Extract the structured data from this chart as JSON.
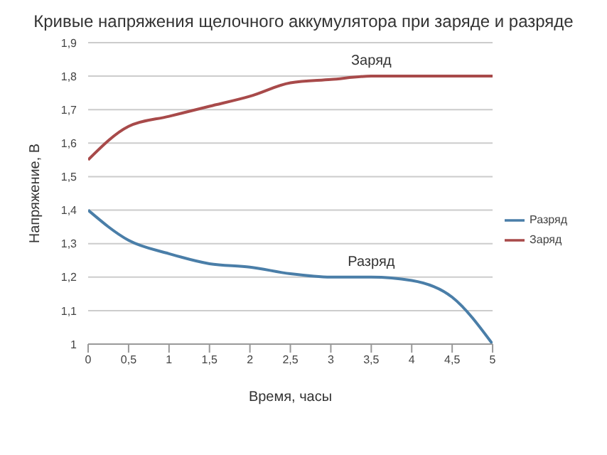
{
  "chart_data": {
    "type": "line",
    "title": "Кривые напряжения щелочного аккумулятора при заряде и разряде",
    "xlabel": "Время, часы",
    "ylabel": "Напряжение, В",
    "x": [
      0,
      0.5,
      1,
      1.5,
      2,
      2.5,
      3,
      3.5,
      4,
      4.5,
      5
    ],
    "series": [
      {
        "name": "Разряд",
        "color": "#4a7ea8",
        "values": [
          1.4,
          1.31,
          1.27,
          1.24,
          1.23,
          1.21,
          1.2,
          1.2,
          1.19,
          1.14,
          1.0
        ]
      },
      {
        "name": "Заряд",
        "color": "#a84a4a",
        "values": [
          1.55,
          1.65,
          1.68,
          1.71,
          1.74,
          1.78,
          1.79,
          1.8,
          1.8,
          1.8,
          1.8
        ]
      }
    ],
    "annotations": [
      {
        "text": "Заряд",
        "x": 3.5,
        "y": 1.8
      },
      {
        "text": "Разряд",
        "x": 3.5,
        "y": 1.2
      }
    ],
    "xlim": [
      0,
      5
    ],
    "xticks": [
      0,
      {
        "value": 0.5,
        "label": "0,5"
      },
      1,
      {
        "value": 1.5,
        "label": "1,5"
      },
      2,
      {
        "value": 2.5,
        "label": "2,5"
      },
      3,
      {
        "value": 3.5,
        "label": "3,5"
      },
      4,
      {
        "value": 4.5,
        "label": "4,5"
      },
      5
    ],
    "ylim": [
      1,
      1.9
    ],
    "yticks": [
      1,
      {
        "value": 1.1,
        "label": "1,1"
      },
      {
        "value": 1.2,
        "label": "1,2"
      },
      {
        "value": 1.3,
        "label": "1,3"
      },
      {
        "value": 1.4,
        "label": "1,4"
      },
      {
        "value": 1.5,
        "label": "1,5"
      },
      {
        "value": 1.6,
        "label": "1,6"
      },
      {
        "value": 1.7,
        "label": "1,7"
      },
      {
        "value": 1.8,
        "label": "1,8"
      },
      {
        "value": 1.9,
        "label": "1,9"
      }
    ],
    "grid": "y",
    "legend": "right",
    "marker": "none",
    "line_style": "solid"
  }
}
